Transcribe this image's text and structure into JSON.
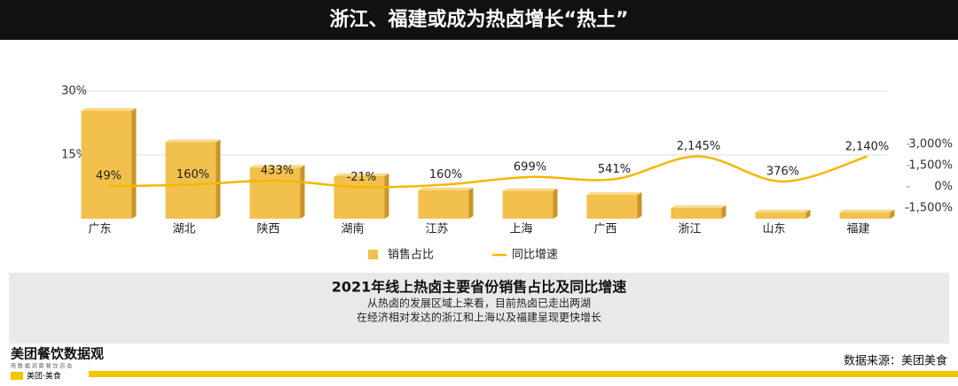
{
  "chart_data": {
    "type": "bar_line",
    "title": "浙江、福建或成为热卤增长“热土”",
    "categories": [
      "广东",
      "湖北",
      "陕西",
      "湖南",
      "江苏",
      "上海",
      "广西",
      "浙江",
      "山东",
      "福建"
    ],
    "series": [
      {
        "name": "销售占比",
        "type": "bar",
        "color": "#f2c04c",
        "values": [
          25.4,
          18,
          12,
          10,
          6.7,
          6.5,
          5.6,
          2.5,
          1.5,
          1.5
        ]
      },
      {
        "name": "同比增速",
        "type": "line",
        "axis": "y2",
        "color": "#f5b700",
        "values": [
          49,
          160,
          433,
          -21,
          160,
          699,
          541,
          2145,
          376,
          2140
        ],
        "value_labels": [
          "49%",
          "160%",
          "433%",
          "-21%",
          "160%",
          "699%",
          "541%",
          "2,145%",
          "376%",
          "2,140%"
        ]
      }
    ],
    "ylim": [
      0,
      30
    ],
    "yticks": [
      {
        "value": 15,
        "label": "15%"
      },
      {
        "value": 30,
        "label": "30%"
      }
    ],
    "y2lim": [
      -2250,
      6750
    ],
    "y2ticks": [
      {
        "value": 3000,
        "label": "3,000%"
      },
      {
        "value": 1500,
        "label": "1,500%"
      },
      {
        "value": 0,
        "label": "0%"
      },
      {
        "value": -1500,
        "label": "-1,500%"
      }
    ],
    "grid": true,
    "caption": {
      "title": "2021年线上热卤主要省份销售占比及同比增速",
      "lines": [
        "从热卤的发展区域上来看，目前热卤已走出两湖",
        "在经济相对发达的浙江和上海以及福建呈现更快增长"
      ]
    },
    "footer": {
      "brand": "美团餐饮数据观",
      "tagline": "用 数 据 洞 察 餐 饮 百 态",
      "sub_brand": "美团·美食",
      "source": "数据来源：美团美食"
    }
  }
}
